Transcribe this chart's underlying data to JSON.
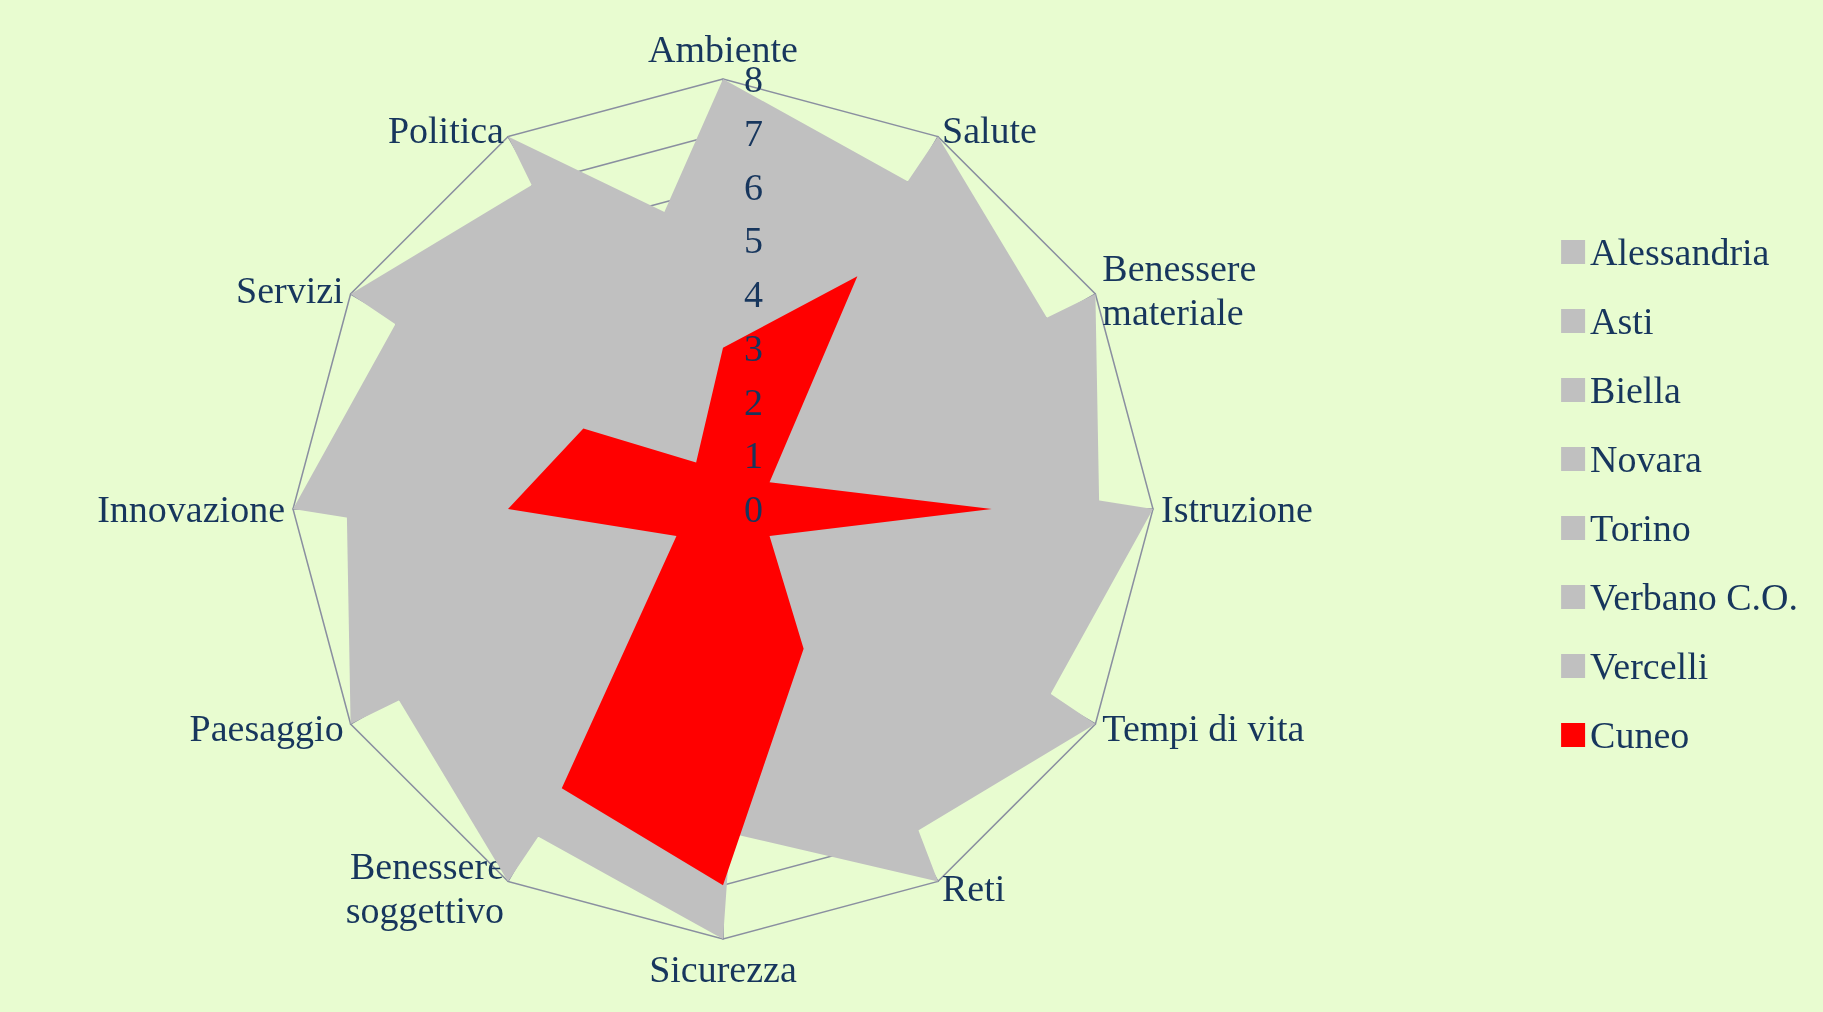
{
  "chart_data": {
    "type": "radar",
    "categories": [
      "Ambiente",
      "Salute",
      "Benessere materiale",
      "Istruzione",
      "Tempi di vita",
      "Reti",
      "Sicurezza",
      "Benessere soggettivo",
      "Paesaggio",
      "Innovazione",
      "Servizi",
      "Politica"
    ],
    "ylim": [
      0,
      8
    ],
    "yticks": [
      0,
      1,
      2,
      3,
      4,
      5,
      6,
      7,
      8
    ],
    "grid": true,
    "legend": "right",
    "marker": "none",
    "series": [
      {
        "name": "Alessandria",
        "color": "#c0c0c0",
        "values": [
          8,
          7,
          6,
          4,
          4,
          2,
          1,
          8,
          7,
          6,
          5,
          4
        ]
      },
      {
        "name": "Asti",
        "color": "#c0c0c0",
        "values": [
          7,
          6,
          5,
          3,
          3,
          1,
          8,
          7,
          6,
          5,
          4,
          3
        ]
      },
      {
        "name": "Biella",
        "color": "#c0c0c0",
        "values": [
          6,
          4,
          4,
          2,
          2,
          8,
          6,
          5,
          5,
          3,
          2,
          2
        ]
      },
      {
        "name": "Novara",
        "color": "#c0c0c0",
        "values": [
          5,
          3,
          3,
          1,
          8,
          7,
          5,
          4,
          4,
          2,
          1,
          8
        ]
      },
      {
        "name": "Torino",
        "color": "#c0c0c0",
        "values": [
          4,
          2,
          2,
          8,
          7,
          6,
          4,
          3,
          3,
          1,
          8,
          7
        ]
      },
      {
        "name": "Verbano C.O.",
        "color": "#c0c0c0",
        "values": [
          2,
          1,
          8,
          7,
          6,
          5,
          3,
          2,
          2,
          8,
          7,
          6
        ]
      },
      {
        "name": "Vercelli",
        "color": "#c0c0c0",
        "values": [
          1,
          8,
          7,
          6,
          5,
          4,
          2,
          1,
          8,
          7,
          6,
          5
        ]
      },
      {
        "name": "Cuneo",
        "color": "#ff0000",
        "values": [
          3,
          5,
          1,
          5,
          1,
          3,
          7,
          6,
          1,
          4,
          3,
          1
        ]
      }
    ]
  }
}
